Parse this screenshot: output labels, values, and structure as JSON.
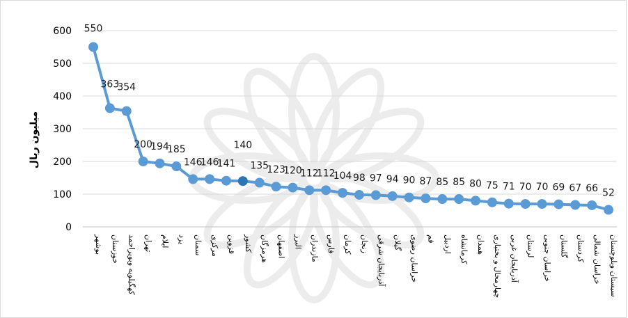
{
  "chart_data": {
    "type": "line",
    "ylabel": "میلیون ریال",
    "xlabel": "",
    "ylim": [
      0,
      600
    ],
    "y_ticks": [
      0,
      100,
      200,
      300,
      400,
      500,
      600
    ],
    "grid": "horizontal",
    "legend": "none",
    "categories": [
      "بوشهر",
      "خوزستان",
      "کهگیلویه وبویراحمد",
      "تهران",
      "ایلام",
      "یزد",
      "سمنان",
      "مرکزی",
      "قزوین",
      "کشور",
      "هرمزگان",
      "اصفهان",
      "البرز",
      "مازندران",
      "فارس",
      "کرمان",
      "زنجان",
      "آذربایجان شرقی",
      "گیلان",
      "خراسان رضوی",
      "قم",
      "اردبیل",
      "کرمانشاه",
      "همدان",
      "چهارمحال و بختیاری",
      "آذربایجان غربی",
      "لرستان",
      "خراسان جنوبی",
      "گلستان",
      "کردستان",
      "خراسان شمالی",
      "سیستان وبلوچستان"
    ],
    "series": [
      {
        "values": [
          550,
          363,
          354,
          200,
          194,
          185,
          146,
          146,
          141,
          140,
          135,
          123,
          120,
          112,
          112,
          104,
          98,
          97,
          94,
          90,
          87,
          85,
          85,
          80,
          75,
          71,
          70,
          70,
          69,
          67,
          66,
          52
        ]
      }
    ],
    "highlighted_categories": [
      "کشور"
    ],
    "colors": {
      "line": "#5b9bd5",
      "marker": "#5b9bd5",
      "highlight_marker": "#2e75b6",
      "grid": "#d9d9d9",
      "axis": "#bfbfbf"
    }
  }
}
